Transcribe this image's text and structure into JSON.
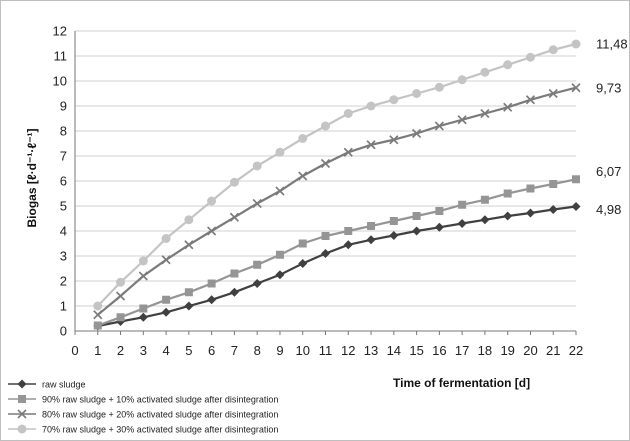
{
  "chart_data": {
    "type": "line",
    "title": "",
    "xlabel": "Time of fermentation [d]",
    "ylabel": "Biogas [ℓ·d⁻¹·ℓ⁻¹]",
    "xlim": [
      0,
      22
    ],
    "ylim": [
      0,
      12
    ],
    "x_ticks": [
      0,
      1,
      2,
      3,
      4,
      5,
      6,
      7,
      8,
      9,
      10,
      11,
      12,
      13,
      14,
      15,
      16,
      17,
      18,
      19,
      20,
      21,
      22
    ],
    "y_ticks": [
      0,
      1,
      2,
      3,
      4,
      5,
      6,
      7,
      8,
      9,
      10,
      11,
      12
    ],
    "grid": "horizontal",
    "legend_position": "bottom-left",
    "x": [
      1,
      2,
      3,
      4,
      5,
      6,
      7,
      8,
      9,
      10,
      11,
      12,
      13,
      14,
      15,
      16,
      17,
      18,
      19,
      20,
      21,
      22
    ],
    "series": [
      {
        "name": "raw sludge",
        "marker": "diamond",
        "color": "#404040",
        "values": [
          0.2,
          0.38,
          0.55,
          0.75,
          1.0,
          1.25,
          1.55,
          1.9,
          2.25,
          2.7,
          3.1,
          3.45,
          3.65,
          3.82,
          4.0,
          4.15,
          4.3,
          4.45,
          4.6,
          4.72,
          4.86,
          4.98
        ],
        "end_label": "4,98"
      },
      {
        "name": "90% raw sludge + 10% activated sludge after disintegration",
        "marker": "square",
        "color": "#959595",
        "values": [
          0.22,
          0.55,
          0.9,
          1.25,
          1.55,
          1.9,
          2.3,
          2.65,
          3.05,
          3.5,
          3.8,
          4.0,
          4.2,
          4.4,
          4.6,
          4.8,
          5.05,
          5.25,
          5.5,
          5.7,
          5.88,
          6.07
        ],
        "end_label": "6,07"
      },
      {
        "name": "80% raw sludge + 20% activated sludge after disintegration",
        "marker": "x",
        "color": "#7a7a7a",
        "values": [
          0.65,
          1.4,
          2.2,
          2.85,
          3.45,
          4.0,
          4.55,
          5.1,
          5.6,
          6.2,
          6.7,
          7.15,
          7.45,
          7.65,
          7.9,
          8.2,
          8.45,
          8.7,
          8.95,
          9.25,
          9.5,
          9.73
        ],
        "end_label": "9,73"
      },
      {
        "name": "70% raw sludge + 30% activated sludge after disintegration",
        "marker": "circle",
        "color": "#c4c4c4",
        "values": [
          1.0,
          1.95,
          2.8,
          3.7,
          4.45,
          5.2,
          5.95,
          6.6,
          7.15,
          7.7,
          8.2,
          8.7,
          9.0,
          9.25,
          9.5,
          9.75,
          10.05,
          10.35,
          10.65,
          10.95,
          11.25,
          11.48
        ],
        "end_label": "11,48"
      }
    ]
  }
}
